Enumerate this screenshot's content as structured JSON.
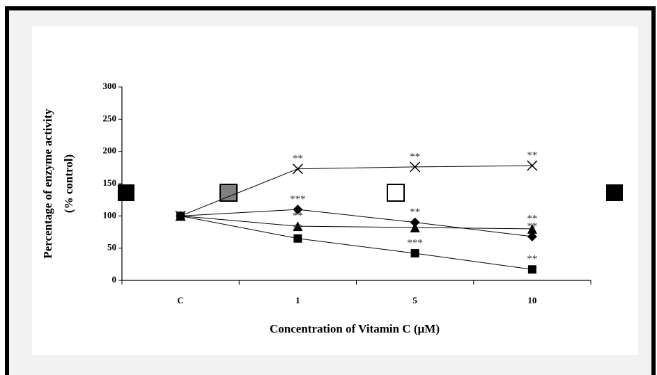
{
  "chart_data": {
    "type": "line",
    "xlabel": "Concentration of Vitamin C (µM)",
    "ylabel": [
      "Percentage of enzyme activity",
      "(% control)"
    ],
    "categories": [
      "C",
      "1",
      "5",
      "10"
    ],
    "ylim": [
      0,
      300
    ],
    "yticks": [
      0,
      50,
      100,
      150,
      200,
      250,
      300
    ],
    "series": [
      {
        "marker": "x",
        "color": "#000000",
        "values": [
          100,
          173,
          176,
          178
        ],
        "annotations": [
          null,
          "**",
          "**",
          "**"
        ]
      },
      {
        "marker": "diamond",
        "color": "#000000",
        "values": [
          100,
          110,
          90,
          68
        ],
        "annotations": [
          null,
          "***",
          "**",
          "**"
        ]
      },
      {
        "marker": "triangle",
        "color": "#000000",
        "values": [
          100,
          84,
          82,
          80
        ],
        "annotations": [
          null,
          "**",
          null,
          "**"
        ]
      },
      {
        "marker": "square",
        "color": "#000000",
        "values": [
          100,
          65,
          42,
          17
        ],
        "annotations": [
          null,
          "**",
          "***",
          "**"
        ]
      }
    ]
  }
}
